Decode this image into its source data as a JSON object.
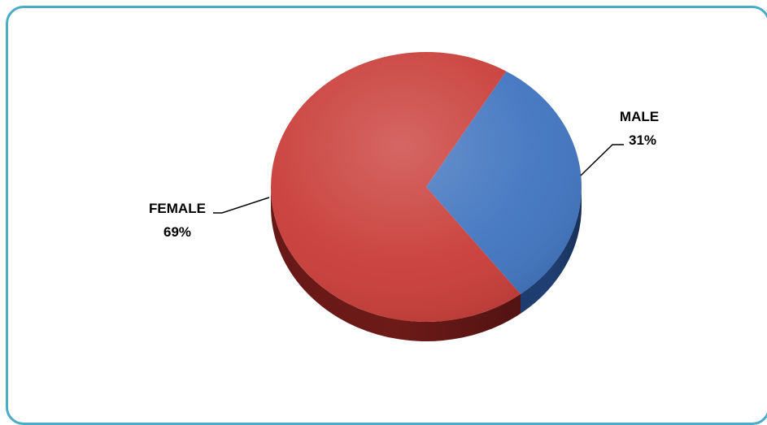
{
  "chart_data": {
    "type": "pie",
    "title": "",
    "style": "3d",
    "slices": [
      {
        "label": "MALE",
        "percent_label": "31%",
        "value": 31,
        "color": "#3f73bf",
        "side_color": "#1f3f73"
      },
      {
        "label": "FEMALE",
        "percent_label": "69%",
        "value": 69,
        "color": "#c83b37",
        "side_color": "#6d1a18"
      }
    ],
    "legend": "none",
    "border_color": "#4bacc6"
  }
}
